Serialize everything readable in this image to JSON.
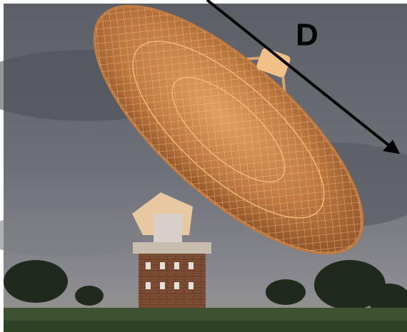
{
  "label": "D"
}
